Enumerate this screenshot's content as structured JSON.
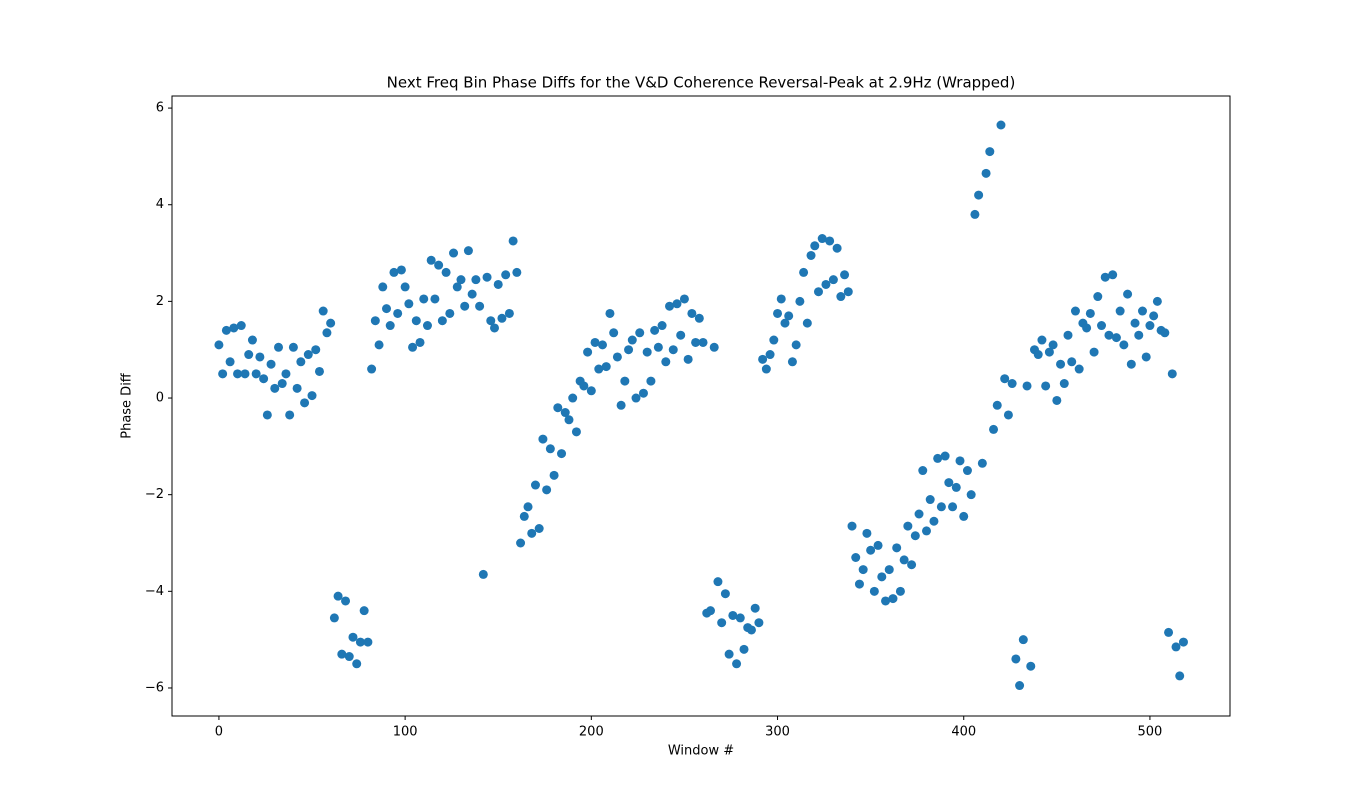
{
  "chart_data": {
    "type": "scatter",
    "title": "Next Freq Bin Phase Diffs for the V&D Coherence Reversal-Peak at 2.9Hz (Wrapped)",
    "xlabel": "Window #",
    "ylabel": "Phase Diff",
    "color": "#1f77b4",
    "xlim": [
      -25.2,
      543
    ],
    "ylim": [
      -6.58,
      6.25
    ],
    "xticks": [
      0,
      100,
      200,
      300,
      400,
      500
    ],
    "yticks": [
      {
        "value": -6,
        "label": "−6"
      },
      {
        "value": -4,
        "label": "−4"
      },
      {
        "value": -2,
        "label": "−2"
      },
      0,
      2,
      4,
      6
    ],
    "x": [
      0,
      2,
      4,
      6,
      8,
      10,
      12,
      14,
      16,
      18,
      20,
      22,
      24,
      26,
      28,
      30,
      32,
      34,
      36,
      38,
      40,
      42,
      44,
      46,
      48,
      50,
      52,
      54,
      56,
      58,
      60,
      62,
      64,
      66,
      68,
      70,
      72,
      74,
      76,
      78,
      80,
      82,
      84,
      86,
      88,
      90,
      92,
      94,
      96,
      98,
      100,
      102,
      104,
      106,
      108,
      110,
      112,
      114,
      116,
      118,
      120,
      122,
      124,
      126,
      128,
      130,
      132,
      134,
      136,
      138,
      140,
      142,
      144,
      146,
      148,
      150,
      152,
      154,
      156,
      158,
      160,
      162,
      164,
      166,
      168,
      170,
      172,
      174,
      176,
      178,
      180,
      182,
      184,
      186,
      188,
      190,
      192,
      194,
      196,
      198,
      200,
      202,
      204,
      206,
      208,
      210,
      212,
      214,
      216,
      218,
      220,
      222,
      224,
      226,
      228,
      230,
      232,
      234,
      236,
      238,
      240,
      242,
      244,
      246,
      248,
      250,
      252,
      254,
      256,
      258,
      260,
      262,
      264,
      266,
      268,
      270,
      272,
      274,
      276,
      278,
      280,
      282,
      284,
      286,
      288,
      290,
      292,
      294,
      296,
      298,
      300,
      302,
      304,
      306,
      308,
      310,
      312,
      314,
      316,
      318,
      320,
      322,
      324,
      326,
      328,
      330,
      332,
      334,
      336,
      338,
      340,
      342,
      344,
      346,
      348,
      350,
      352,
      354,
      356,
      358,
      360,
      362,
      364,
      366,
      368,
      370,
      372,
      374,
      376,
      378,
      380,
      382,
      384,
      386,
      388,
      390,
      392,
      394,
      396,
      398,
      400,
      402,
      404,
      406,
      408,
      410,
      412,
      414,
      416,
      418,
      420,
      422,
      424,
      426,
      428,
      430,
      432,
      434,
      436,
      438,
      440,
      442,
      444,
      446,
      448,
      450,
      452,
      454,
      456,
      458,
      460,
      462,
      464,
      466,
      468,
      470,
      472,
      474,
      476,
      478,
      480,
      482,
      484,
      486,
      488,
      490,
      492,
      494,
      496,
      498,
      500,
      502,
      504,
      506,
      508,
      510,
      512,
      514,
      516,
      518
    ],
    "values": [
      1.1,
      0.5,
      1.4,
      0.75,
      1.45,
      0.5,
      1.5,
      0.5,
      0.9,
      1.2,
      0.5,
      0.85,
      0.4,
      -0.35,
      0.7,
      0.2,
      1.05,
      0.3,
      0.5,
      -0.35,
      1.05,
      0.2,
      0.75,
      -0.1,
      0.9,
      0.05,
      1.0,
      0.55,
      1.8,
      1.35,
      1.55,
      -4.55,
      -4.1,
      -5.3,
      -4.2,
      -5.35,
      -4.95,
      -5.5,
      -5.05,
      -4.4,
      -5.05,
      0.6,
      1.6,
      1.1,
      2.3,
      1.85,
      1.5,
      2.6,
      1.75,
      2.65,
      2.3,
      1.95,
      1.05,
      1.6,
      1.15,
      2.05,
      1.5,
      2.85,
      2.05,
      2.75,
      1.6,
      2.6,
      1.75,
      3.0,
      2.3,
      2.45,
      1.9,
      3.05,
      2.15,
      2.45,
      1.9,
      -3.65,
      2.5,
      1.6,
      1.45,
      2.35,
      1.65,
      2.55,
      1.75,
      3.25,
      2.6,
      -3.0,
      -2.45,
      -2.25,
      -2.8,
      -1.8,
      -2.7,
      -0.85,
      -1.9,
      -1.05,
      -1.6,
      -0.2,
      -1.15,
      -0.3,
      -0.45,
      0.0,
      -0.7,
      0.35,
      0.25,
      0.95,
      0.15,
      1.15,
      0.6,
      1.1,
      0.65,
      1.75,
      1.35,
      0.85,
      -0.15,
      0.35,
      1.0,
      1.2,
      0.0,
      1.35,
      0.1,
      0.95,
      0.35,
      1.4,
      1.05,
      1.5,
      0.75,
      1.9,
      1.0,
      1.95,
      1.3,
      2.05,
      0.8,
      1.75,
      1.15,
      1.65,
      1.15,
      -4.45,
      -4.4,
      1.05,
      -3.8,
      -4.65,
      -4.05,
      -5.3,
      -4.5,
      -5.5,
      -4.55,
      -5.2,
      -4.75,
      -4.8,
      -4.35,
      -4.65,
      0.8,
      0.6,
      0.9,
      1.2,
      1.75,
      2.05,
      1.55,
      1.7,
      0.75,
      1.1,
      2.0,
      2.6,
      1.55,
      2.95,
      3.15,
      2.2,
      3.3,
      2.35,
      3.25,
      2.45,
      3.1,
      2.1,
      2.55,
      2.2,
      -2.65,
      -3.3,
      -3.85,
      -3.55,
      -2.8,
      -3.15,
      -4.0,
      -3.05,
      -3.7,
      -4.2,
      -3.55,
      -4.15,
      -3.1,
      -4.0,
      -3.35,
      -2.65,
      -3.45,
      -2.85,
      -2.4,
      -1.5,
      -2.75,
      -2.1,
      -2.55,
      -1.25,
      -2.25,
      -1.2,
      -1.75,
      -2.25,
      -1.85,
      -1.3,
      -2.45,
      -1.5,
      -2.0,
      3.8,
      4.2,
      -1.35,
      4.65,
      5.1,
      -0.65,
      -0.15,
      5.65,
      0.4,
      -0.35,
      0.3,
      -5.4,
      -5.95,
      -5.0,
      0.25,
      -5.55,
      1.0,
      0.9,
      1.2,
      0.25,
      0.95,
      1.1,
      -0.05,
      0.7,
      0.3,
      1.3,
      0.75,
      1.8,
      0.6,
      1.55,
      1.45,
      1.75,
      0.95,
      2.1,
      1.5,
      2.5,
      1.3,
      2.55,
      1.25,
      1.8,
      1.1,
      2.15,
      0.7,
      1.55,
      1.3,
      1.8,
      0.85,
      1.5,
      1.7,
      2.0,
      1.4,
      1.35,
      -4.85,
      0.5,
      -5.15,
      -5.75,
      -5.05
    ]
  }
}
